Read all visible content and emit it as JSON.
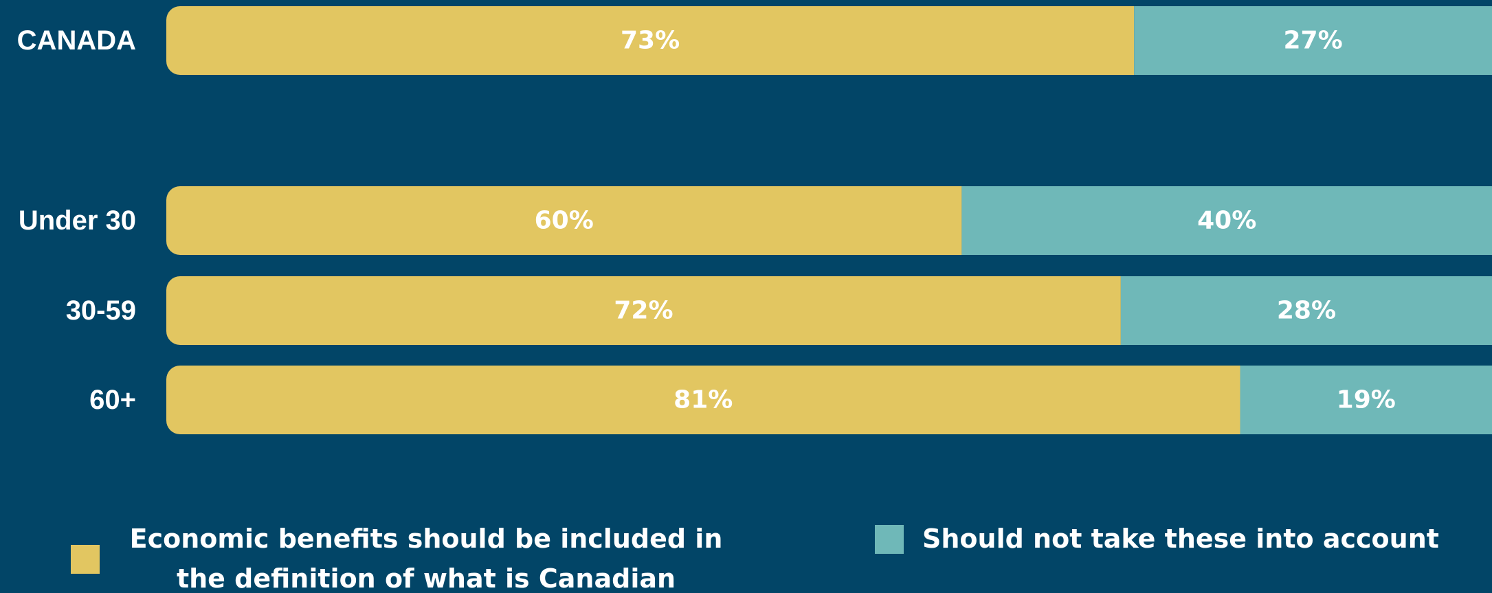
{
  "chart_data": {
    "type": "bar",
    "orientation": "horizontal",
    "stacked": true,
    "normalized": true,
    "categories": [
      "CANADA",
      "Under 30",
      "30-59",
      "60+"
    ],
    "series": [
      {
        "name": "Economic benefits should be included in the definition of what is Canadian",
        "color": "#E2C661",
        "values": [
          73,
          60,
          72,
          81
        ],
        "labels": [
          "73%",
          "60%",
          "72%",
          "81%"
        ]
      },
      {
        "name": "Should not take these into account",
        "color": "#6FB8B8",
        "values": [
          27,
          40,
          28,
          19
        ],
        "labels": [
          "27%",
          "40%",
          "28%",
          "19%"
        ]
      }
    ],
    "xlim": [
      0,
      100
    ],
    "grid": false,
    "legend_position": "bottom",
    "background": "#024567",
    "label_color": "#FFFFFF"
  }
}
